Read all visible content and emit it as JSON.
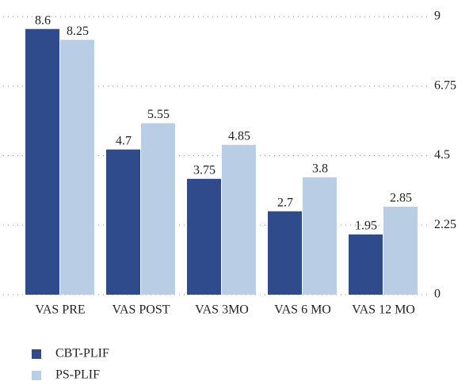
{
  "chart_data": {
    "type": "bar",
    "categories": [
      "VAS PRE",
      "VAS POST",
      "VAS 3MO",
      "VAS 6 MO",
      "VAS 12 MO"
    ],
    "series": [
      {
        "name": "CBT-PLIF",
        "color": "#2f4b8c",
        "values": [
          8.6,
          4.7,
          3.75,
          2.7,
          1.95
        ]
      },
      {
        "name": "PS-PLIF",
        "color": "#b9cde5",
        "values": [
          8.25,
          5.55,
          4.85,
          3.8,
          2.85
        ]
      }
    ],
    "ylim": [
      0,
      9
    ],
    "yticks": [
      0,
      2.25,
      4.5,
      6.75,
      9
    ],
    "grid": true,
    "legend": "bottom-left"
  }
}
